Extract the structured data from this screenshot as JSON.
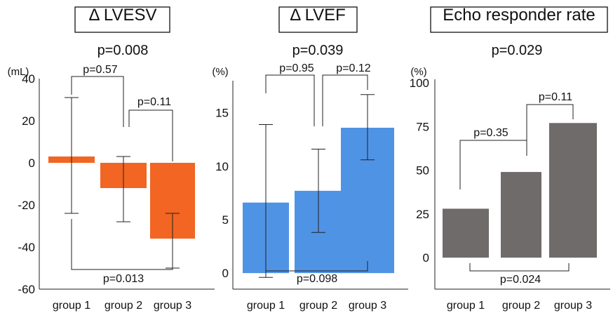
{
  "chart_data": [
    {
      "type": "bar",
      "title": "Δ LVESV",
      "pvalue": "p=0.008",
      "unit": "(mL)",
      "categories": [
        "group 1",
        "group 2",
        "group 3"
      ],
      "values": [
        3,
        -12,
        -36
      ],
      "error_low": [
        -24,
        -28,
        -50
      ],
      "error_high": [
        31,
        3,
        -24
      ],
      "bar_color": "#F26522",
      "ylim": [
        -60,
        40
      ],
      "yticks": [
        "40",
        "20",
        "0",
        "-20",
        "-40",
        "-60"
      ],
      "yticks_values": [
        40,
        20,
        0,
        -20,
        -40,
        -60
      ],
      "comparisons": [
        {
          "from": 0,
          "to": 1,
          "label": "p=0.57",
          "position": "top"
        },
        {
          "from": 1,
          "to": 2,
          "label": "p=0.11",
          "position": "top"
        },
        {
          "from": 0,
          "to": 2,
          "label": "p=0.013",
          "position": "bottom"
        }
      ]
    },
    {
      "type": "bar",
      "title": "Δ LVEF",
      "pvalue": "p=0.039",
      "unit": "(%)",
      "categories": [
        "group 1",
        "group 2",
        "group 3"
      ],
      "values": [
        6.6,
        7.7,
        13.6
      ],
      "error_low": [
        -0.4,
        3.8,
        10.6
      ],
      "error_high": [
        13.9,
        11.6,
        16.7
      ],
      "bar_color": "#4F93E5",
      "ylim": [
        -1.5,
        18
      ],
      "yticks": [
        "15",
        "10",
        "5",
        "0"
      ],
      "yticks_values": [
        15,
        10,
        5,
        0
      ],
      "comparisons": [
        {
          "from": 0,
          "to": 1,
          "label": "p=0.95",
          "position": "top"
        },
        {
          "from": 1,
          "to": 2,
          "label": "p=0.12",
          "position": "top"
        },
        {
          "from": 0,
          "to": 2,
          "label": "p=0.098",
          "position": "bottom"
        }
      ]
    },
    {
      "type": "bar",
      "title": "Echo responder rate",
      "pvalue": "p=0.029",
      "unit": "(%)",
      "categories": [
        "group 1",
        "group 2",
        "group 3"
      ],
      "values": [
        28,
        49,
        77
      ],
      "bar_color": "#6E6B6A",
      "ylim": [
        -18,
        102
      ],
      "yticks": [
        "100",
        "75",
        "50",
        "25",
        "0"
      ],
      "yticks_values": [
        100,
        75,
        50,
        25,
        0
      ],
      "comparisons": [
        {
          "from": 0,
          "to": 1,
          "label": "p=0.35",
          "position": "top"
        },
        {
          "from": 1,
          "to": 2,
          "label": "p=0.11",
          "position": "top"
        },
        {
          "from": 0,
          "to": 2,
          "label": "p=0.024",
          "position": "bottom"
        }
      ]
    }
  ]
}
